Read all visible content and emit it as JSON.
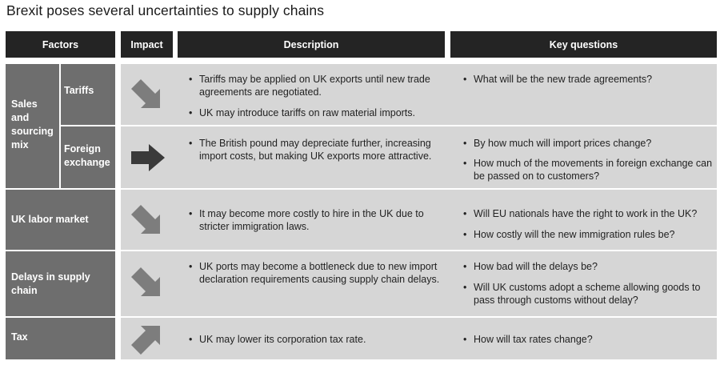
{
  "title": "Brexit poses several uncertainties to supply chains",
  "headers": {
    "factors": "Factors",
    "impact": "Impact",
    "description": "Description",
    "key_questions": "Key questions"
  },
  "group": {
    "label": "Sales and sourcing mix"
  },
  "rows": [
    {
      "factor": "Tariffs",
      "impact": "down",
      "description": [
        "Tariffs may be applied on UK exports until new trade agreements are negotiated.",
        "UK may introduce tariffs on raw material imports."
      ],
      "questions": [
        "What will be the new trade agreements?"
      ]
    },
    {
      "factor": "Foreign exchange",
      "impact": "neutral",
      "description": [
        "The British pound may depreciate further, increasing import costs, but making UK exports more attractive."
      ],
      "questions": [
        "By how much will import prices change?",
        "How much of the movements in foreign exchange can be passed on to customers?"
      ]
    },
    {
      "factor": "UK labor market",
      "impact": "down",
      "description": [
        "It may become more costly to hire in the UK due to stricter immigration laws."
      ],
      "questions": [
        "Will EU nationals have the right to work in the UK?",
        "How costly will the new immigration rules be?"
      ]
    },
    {
      "factor": "Delays in supply chain",
      "impact": "down",
      "description": [
        "UK ports may become a bottleneck due to new import declaration requirements causing supply chain delays."
      ],
      "questions": [
        "How bad will the delays be?",
        "Will UK customs adopt a scheme allowing goods to pass through customs without delay?"
      ]
    },
    {
      "factor": "Tax",
      "impact": "up",
      "description": [
        "UK may lower its corporation tax rate."
      ],
      "questions": [
        "How will tax rates change?"
      ]
    }
  ],
  "colors": {
    "header": "#242424",
    "factor_cell": "#6e6e6e",
    "content_cell": "#d6d6d6",
    "arrow_light": "#7d7d7d",
    "arrow_dark": "#3a3a3a"
  },
  "icons": {
    "down": "arrow-down-right-icon",
    "neutral": "arrow-right-icon",
    "up": "arrow-up-right-icon"
  }
}
